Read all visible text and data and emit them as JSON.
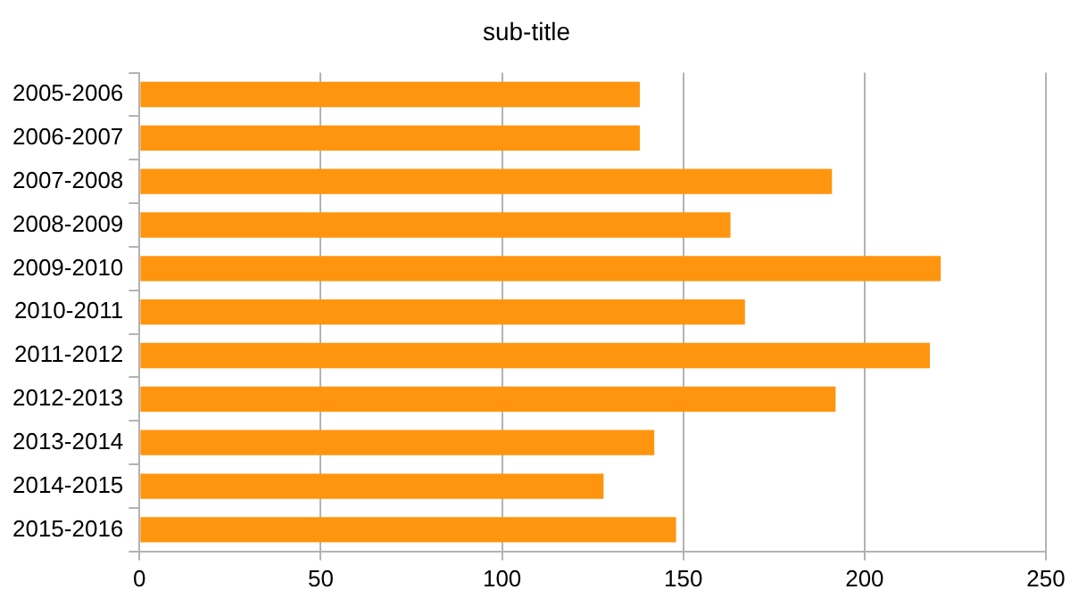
{
  "chart_data": {
    "type": "bar",
    "orientation": "horizontal",
    "title": "sub-title",
    "categories": [
      "2005-2006",
      "2006-2007",
      "2007-2008",
      "2008-2009",
      "2009-2010",
      "2010-2011",
      "2011-2012",
      "2012-2013",
      "2013-2014",
      "2014-2015",
      "2015-2016"
    ],
    "values": [
      138,
      138,
      191,
      163,
      221,
      167,
      218,
      192,
      142,
      128,
      148
    ],
    "color": "#ff950e",
    "xlim": [
      0,
      250
    ],
    "xticks": [
      0,
      50,
      100,
      150,
      200,
      250
    ],
    "grid": "x",
    "legend": false
  }
}
